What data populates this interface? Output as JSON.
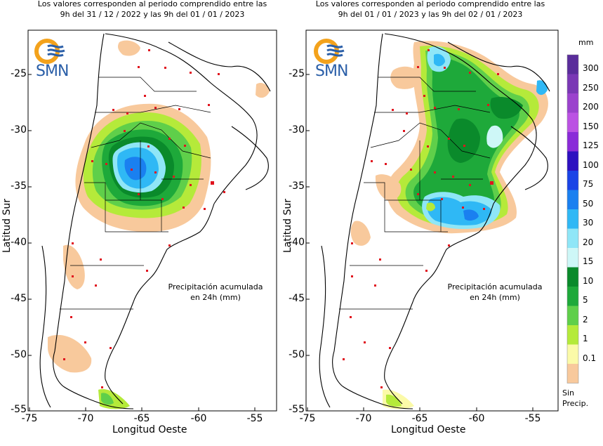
{
  "panels": [
    {
      "title_line1": "Los valores corresponden al periodo comprendido entre las",
      "title_line2": "9h del 31 / 12 / 2022  y las 9h del 01 / 01 / 2023",
      "note_line1": "Precipitación acumulada",
      "note_line2": "en 24h (mm)",
      "logo": "SMN"
    },
    {
      "title_line1": "Los valores corresponden al periodo comprendido entre las",
      "title_line2": "9h del 01 / 01 / 2023  y las 9h del 02 / 01 / 2023",
      "note_line1": "Precipitación acumulada",
      "note_line2": "en 24h (mm)",
      "logo": "SMN"
    }
  ],
  "axes": {
    "xlabel": "Longitud Oeste",
    "ylabel": "Latitud Sur",
    "xticks": [
      "-75",
      "-70",
      "-65",
      "-60",
      "-55"
    ],
    "yticks": [
      "-25",
      "-30",
      "-35",
      "-40",
      "-45",
      "-50",
      "-55"
    ]
  },
  "legend": {
    "unit": "mm",
    "items": [
      {
        "label": "300",
        "color": "#5a2d9b"
      },
      {
        "label": "250",
        "color": "#7a38b5"
      },
      {
        "label": "200",
        "color": "#9b42cd"
      },
      {
        "label": "150",
        "color": "#bb52e3"
      },
      {
        "label": "125",
        "color": "#8a2bd8"
      },
      {
        "label": "100",
        "color": "#2d10c0"
      },
      {
        "label": "75",
        "color": "#1a44e6"
      },
      {
        "label": "50",
        "color": "#1a80f0"
      },
      {
        "label": "30",
        "color": "#2fb8f5"
      },
      {
        "label": "20",
        "color": "#8fe6f7"
      },
      {
        "label": "15",
        "color": "#cef7f7"
      },
      {
        "label": "10",
        "color": "#0a8a2b"
      },
      {
        "label": "5",
        "color": "#1ea93a"
      },
      {
        "label": "2",
        "color": "#5fcf4a"
      },
      {
        "label": "1",
        "color": "#b5ea3a"
      },
      {
        "label": "0.1",
        "color": "#fbfaa8"
      },
      {
        "label": "",
        "color": "#f8c99c"
      }
    ],
    "nodata_line1": "Sin",
    "nodata_line2": "Precip."
  },
  "palette": {
    "orange": "#f8c99c",
    "yellow": "#fbfaa8",
    "lime": "#b5ea3a",
    "green2": "#5fcf4a",
    "green5": "#1ea93a",
    "green10": "#0a8a2b",
    "cyan15": "#cef7f7",
    "cyan20": "#8fe6f7",
    "blue30": "#2fb8f5",
    "blue50": "#1a80f0",
    "station": "#e0141e",
    "logo_blue": "#2b5fa8",
    "logo_orange": "#f3a21c"
  }
}
